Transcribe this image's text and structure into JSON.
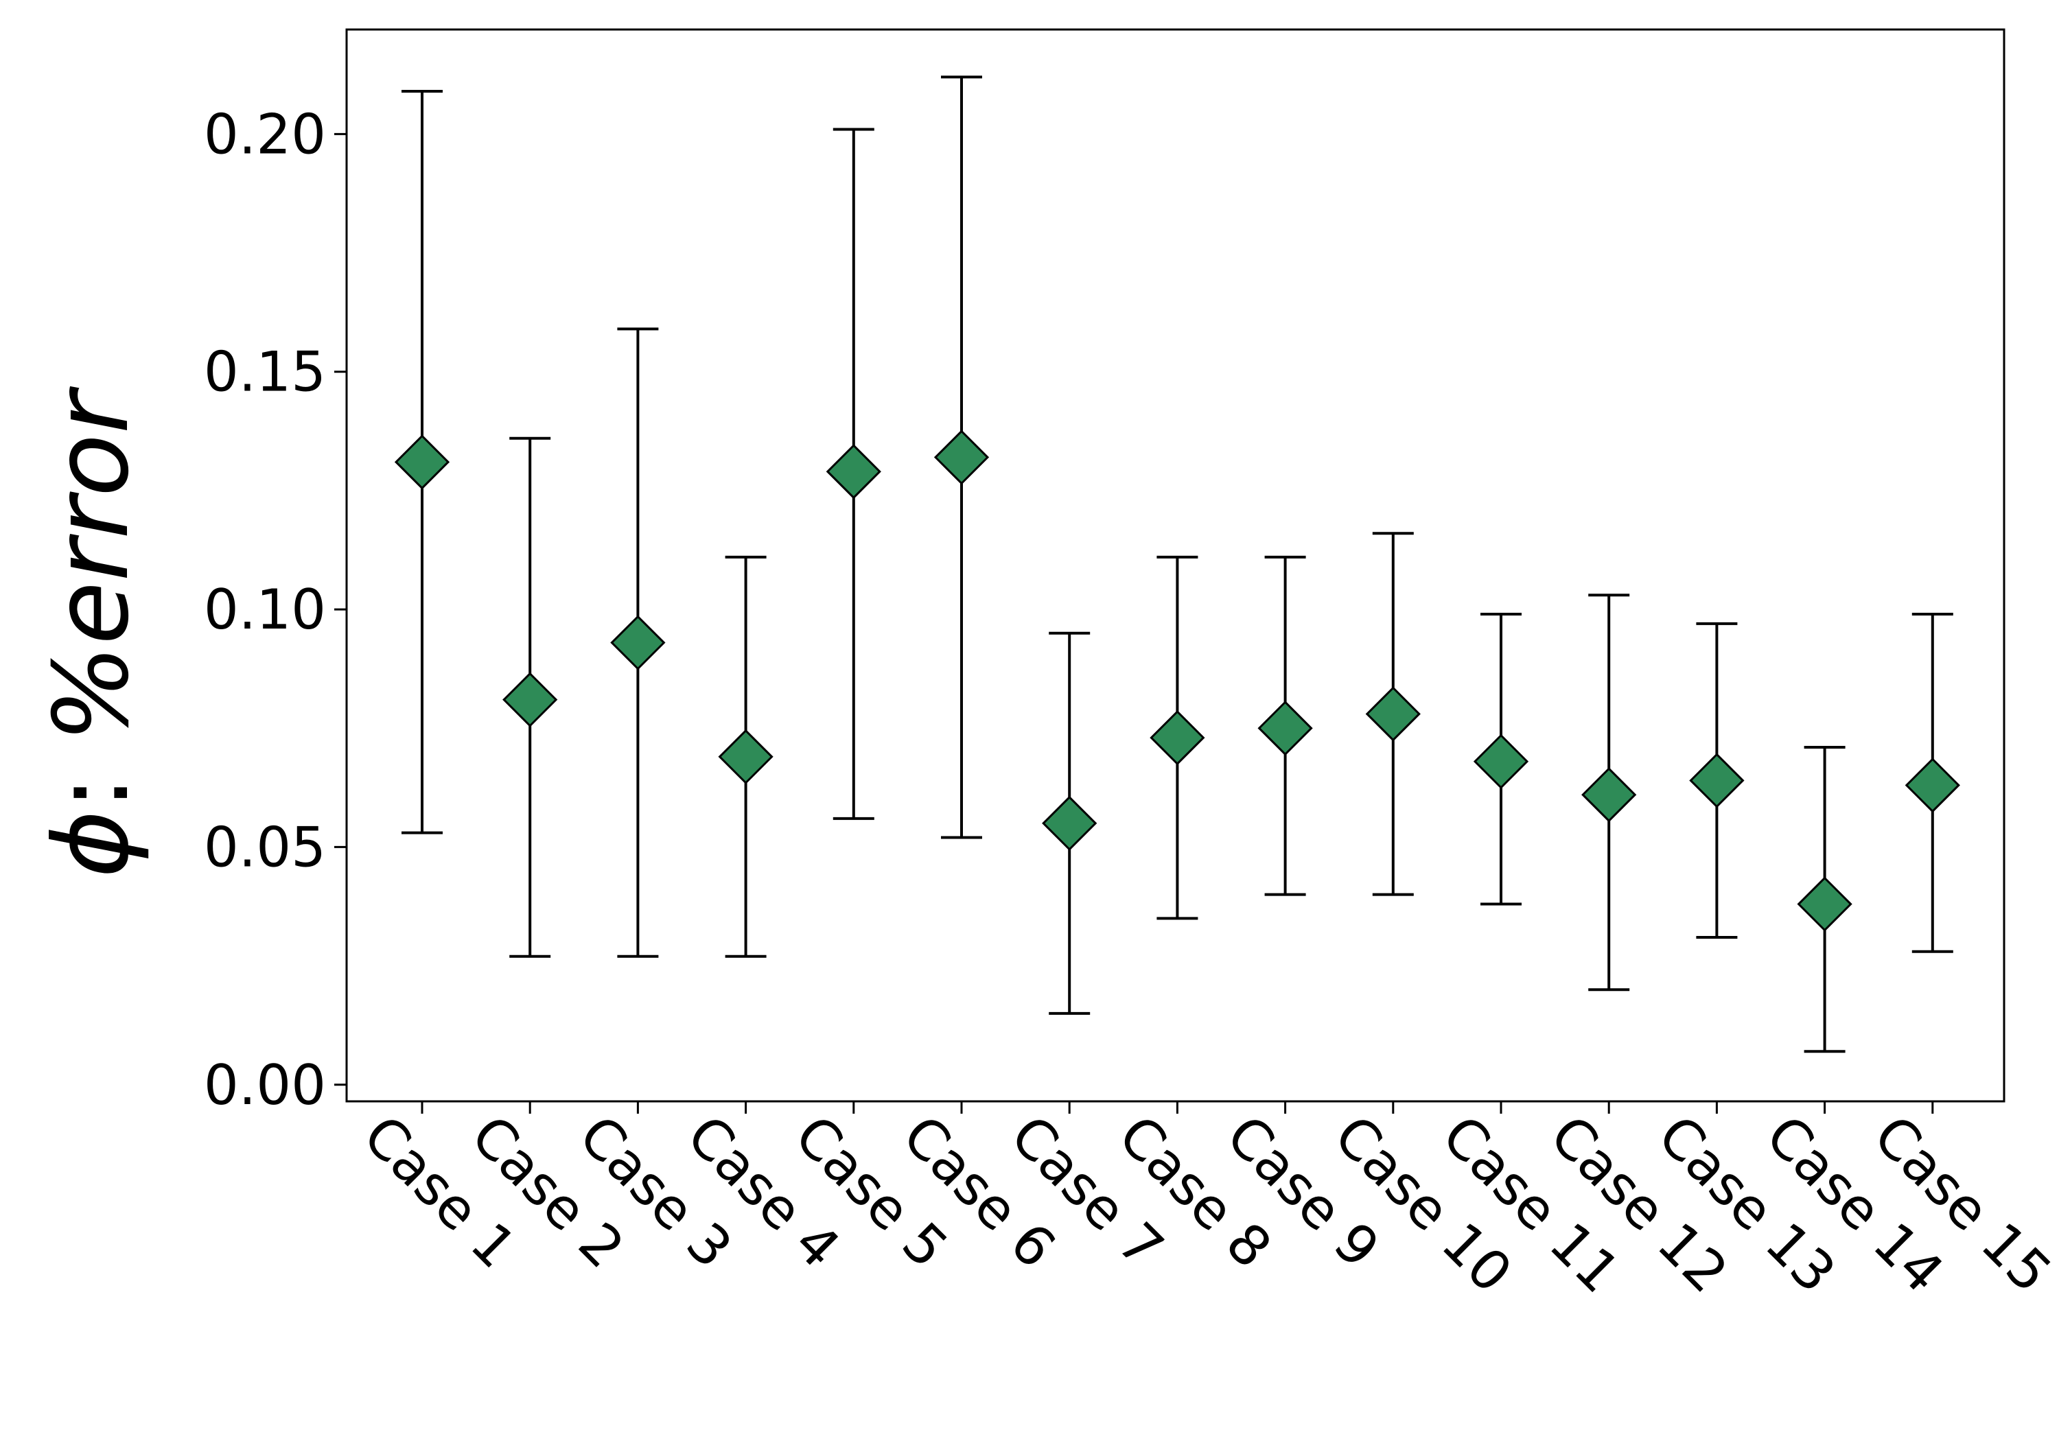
{
  "chart_data": {
    "type": "scatter",
    "title": "",
    "xlabel": "",
    "ylabel": "ϕ: %error",
    "ylabel_parts": {
      "symbol": "ϕ",
      "separator": ": ",
      "rest": "%error"
    },
    "categories": [
      "Case 1",
      "Case 2",
      "Case 3",
      "Case 4",
      "Case 5",
      "Case 6",
      "Case 7",
      "Case 8",
      "Case 9",
      "Case 10",
      "Case 11",
      "Case 12",
      "Case 13",
      "Case 14",
      "Case 15"
    ],
    "series": [
      {
        "values": [
          0.131,
          0.081,
          0.093,
          0.069,
          0.129,
          0.132,
          0.055,
          0.073,
          0.075,
          0.078,
          0.068,
          0.061,
          0.064,
          0.038,
          0.063
        ],
        "lower": [
          0.053,
          0.027,
          0.027,
          0.027,
          0.056,
          0.052,
          0.015,
          0.035,
          0.04,
          0.04,
          0.038,
          0.02,
          0.031,
          0.007,
          0.028
        ],
        "upper": [
          0.209,
          0.136,
          0.159,
          0.111,
          0.201,
          0.212,
          0.095,
          0.111,
          0.111,
          0.116,
          0.099,
          0.103,
          0.097,
          0.071,
          0.099
        ]
      }
    ],
    "yticks": [
      "0.00",
      "0.05",
      "0.10",
      "0.15",
      "0.20"
    ],
    "ylim": [
      -0.0035,
      0.222
    ],
    "marker": "diamond",
    "marker_color": "#2e8b57",
    "errorbar_color": "#000000",
    "grid": false,
    "legend": "none"
  }
}
